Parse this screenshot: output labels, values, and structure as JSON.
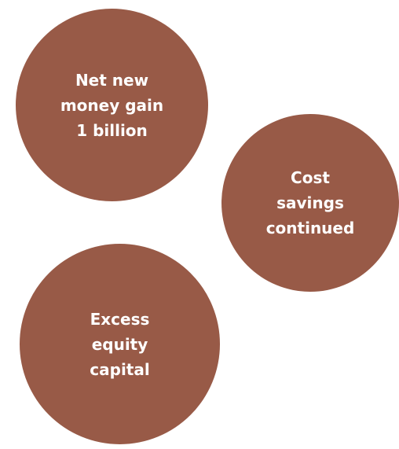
{
  "bubble_color": "#985a47",
  "text_color": "#ffffff",
  "bubbles": [
    {
      "text": "Net new\nmoney gain\n1 billion"
    },
    {
      "text": "Cost\nsavings\ncontinued"
    },
    {
      "text": "Excess\nequity\ncapital"
    }
  ]
}
